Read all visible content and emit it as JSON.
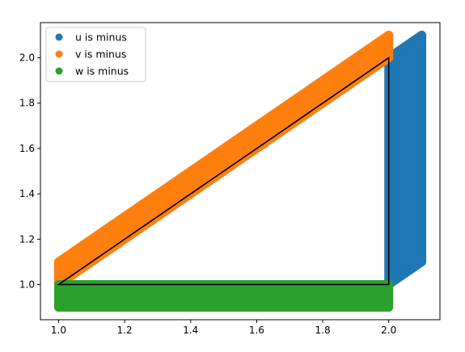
{
  "chart_data": {
    "type": "scatter",
    "xlim": [
      0.945,
      2.155
    ],
    "ylim": [
      0.845,
      2.155
    ],
    "x_ticks": [
      1.0,
      1.2,
      1.4,
      1.6,
      1.8,
      2.0
    ],
    "y_ticks": [
      1.0,
      1.2,
      1.4,
      1.6,
      1.8,
      2.0
    ],
    "x_tick_labels": [
      "1.0",
      "1.2",
      "1.4",
      "1.6",
      "1.8",
      "2.0"
    ],
    "y_tick_labels": [
      "1.0",
      "1.2",
      "1.4",
      "1.6",
      "1.8",
      "2.0"
    ],
    "grid": false,
    "legend_position": "upper-left",
    "series": [
      {
        "name": "u is minus",
        "color": "#1f77b4",
        "region_description": "parallelogram band: x from 2.0 to 2.1, y from 1.0+(x-2.0) to 2.0+(x-2.0)",
        "corners": [
          [
            2.0,
            1.0
          ],
          [
            2.1,
            1.1
          ],
          [
            2.1,
            2.1
          ],
          [
            2.0,
            2.0
          ]
        ]
      },
      {
        "name": "v is minus",
        "color": "#ff7f0e",
        "region_description": "diagonal band: x from 1.0 to 2.0, y from x to x+0.1",
        "corners": [
          [
            1.0,
            1.0
          ],
          [
            2.0,
            2.0
          ],
          [
            2.0,
            2.1
          ],
          [
            1.0,
            1.1
          ]
        ]
      },
      {
        "name": "w is minus",
        "color": "#2ca02c",
        "region_description": "horizontal band: x from 1.0 to 2.0, y from 0.9 to 1.0",
        "corners": [
          [
            1.0,
            0.9
          ],
          [
            2.0,
            0.9
          ],
          [
            2.0,
            1.0
          ],
          [
            1.0,
            1.0
          ]
        ]
      }
    ],
    "triangle": {
      "color": "#000000",
      "vertices": [
        [
          1.0,
          1.0
        ],
        [
          2.0,
          2.0
        ],
        [
          2.0,
          1.0
        ]
      ]
    }
  }
}
